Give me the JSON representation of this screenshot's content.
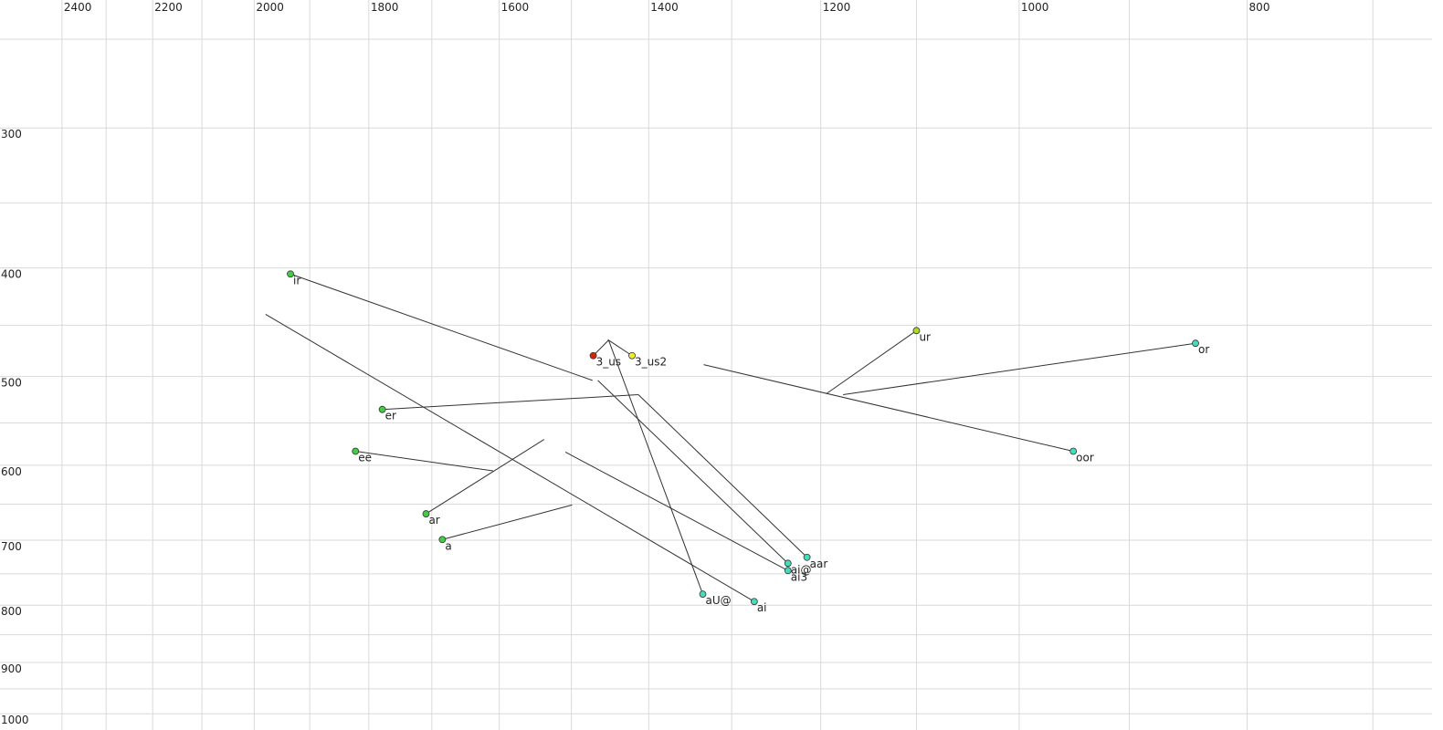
{
  "chart_data": {
    "type": "scatter",
    "x_scale": "bark",
    "y_scale": "log",
    "xlim": [
      2550,
      655
    ],
    "ylim": [
      250,
      1030
    ],
    "xticks": [
      2400,
      2200,
      2000,
      1800,
      1600,
      1400,
      1200,
      1000,
      800
    ],
    "xgrid": [
      2400,
      2300,
      2200,
      2100,
      2000,
      1900,
      1800,
      1700,
      1600,
      1500,
      1400,
      1300,
      1200,
      1100,
      1000,
      900,
      800,
      700
    ],
    "yticks": [
      300,
      400,
      500,
      600,
      700,
      800,
      900,
      1000
    ],
    "ygrid": [
      250,
      300,
      350,
      400,
      450,
      500,
      550,
      600,
      650,
      700,
      750,
      800,
      850,
      900,
      950,
      1000
    ],
    "series": [
      {
        "name": "ir",
        "color": "#44cc44",
        "f2": [
          1934,
          1472
        ],
        "f1": [
          405,
          504
        ]
      },
      {
        "name": "er",
        "color": "#44cc44",
        "f2": [
          1778,
          1413
        ],
        "f1": [
          535,
          519
        ]
      },
      {
        "name": "ee",
        "color": "#44cc44",
        "f2": [
          1822,
          1609
        ],
        "f1": [
          583,
          607
        ]
      },
      {
        "name": "ar",
        "color": "#44cc44",
        "f2": [
          1709,
          1537
        ],
        "f1": [
          663,
          569
        ]
      },
      {
        "name": "a",
        "color": "#44cc44",
        "f2": [
          1684,
          1499
        ],
        "f1": [
          699,
          651
        ]
      },
      {
        "name": "3_us",
        "color": "#dd2200",
        "f2": [
          1471,
          1451
        ],
        "f1": [
          479,
          464
        ]
      },
      {
        "name": "3_us2",
        "color": "#eeee22",
        "f2": [
          1421
        ],
        "f1": [
          479
        ]
      },
      {
        "name": "ur",
        "color": "#aadd22",
        "f2": [
          1100,
          1194
        ],
        "f1": [
          455,
          518
        ]
      },
      {
        "name": "or",
        "color": "#44ddbb",
        "f2": [
          843,
          1176
        ],
        "f1": [
          467,
          519
        ]
      },
      {
        "name": "oor",
        "color": "#44ddbb",
        "f2": [
          950,
          1333
        ],
        "f1": [
          583,
          488
        ]
      },
      {
        "name": "aar",
        "color": "#44ddbb",
        "f2": [
          1215,
          1413
        ],
        "f1": [
          725,
          519
        ]
      },
      {
        "name": "ai@",
        "color": "#44ddbb",
        "f2": [
          1236,
          1465
        ],
        "f1": [
          734,
          504
        ]
      },
      {
        "name": "ai3",
        "color": "#44ddbb",
        "f2": [
          1236,
          1508
        ],
        "f1": [
          745,
          584
        ]
      },
      {
        "name": "aU@",
        "color": "#44ddbb",
        "f2": [
          1334,
          1451,
          1421
        ],
        "f1": [
          782,
          464,
          479
        ]
      },
      {
        "name": "ai",
        "color": "#44ddbb",
        "f2": [
          1274,
          1979
        ],
        "f1": [
          794,
          440
        ]
      }
    ]
  }
}
